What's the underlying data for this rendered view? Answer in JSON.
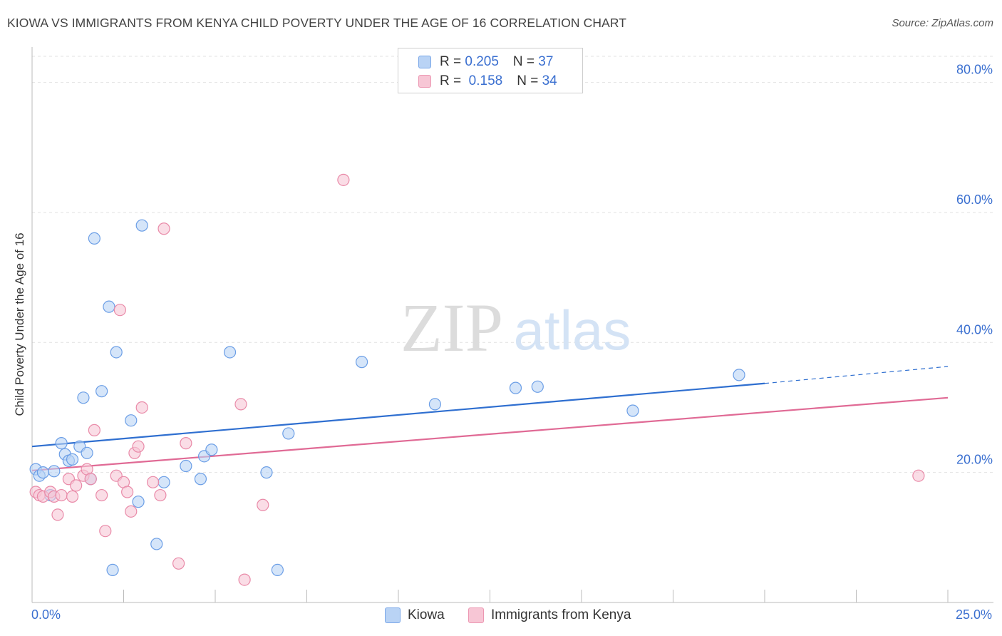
{
  "title": "KIOWA VS IMMIGRANTS FROM KENYA CHILD POVERTY UNDER THE AGE OF 16 CORRELATION CHART",
  "source": "Source: ZipAtlas.com",
  "watermark": {
    "zip": "ZIP",
    "atlas": "atlas"
  },
  "legend": {
    "rows": [
      {
        "r_label": "R = ",
        "r_value": "0.205",
        "n_label": "N = ",
        "n_value": "37",
        "color": "#7aa7e8"
      },
      {
        "r_label": "R = ",
        "r_value": " 0.158",
        "n_label": "N = ",
        "n_value": "34",
        "color": "#ec97b2"
      }
    ]
  },
  "bottom_legend": {
    "series1": "Kiowa",
    "series2": "Immigrants from Kenya"
  },
  "chart_data": {
    "type": "scatter",
    "title": "KIOWA VS IMMIGRANTS FROM KENYA CHILD POVERTY UNDER THE AGE OF 16 CORRELATION CHART",
    "xlabel": "",
    "ylabel": "Child Poverty Under the Age of 16",
    "xlim": [
      0,
      25
    ],
    "ylim": [
      0,
      85
    ],
    "x_tick_labels": [
      "0.0%",
      "25.0%"
    ],
    "y_ticks": [
      20,
      40,
      60,
      80
    ],
    "y_tick_labels": [
      "20.0%",
      "40.0%",
      "60.0%",
      "80.0%"
    ],
    "grid": true,
    "series": [
      {
        "name": "Kiowa",
        "color": "#6b9ee6",
        "fill": "#b9d3f5",
        "points": [
          [
            0.1,
            20.5
          ],
          [
            0.2,
            19.5
          ],
          [
            0.3,
            20.0
          ],
          [
            0.5,
            16.5
          ],
          [
            0.6,
            20.2
          ],
          [
            0.8,
            24.5
          ],
          [
            0.9,
            22.8
          ],
          [
            1.0,
            21.8
          ],
          [
            1.1,
            22.0
          ],
          [
            1.3,
            24.0
          ],
          [
            1.4,
            31.5
          ],
          [
            1.5,
            23.0
          ],
          [
            1.6,
            19.0
          ],
          [
            1.7,
            56.0
          ],
          [
            1.9,
            32.5
          ],
          [
            2.1,
            45.5
          ],
          [
            2.2,
            5.0
          ],
          [
            2.3,
            38.5
          ],
          [
            2.7,
            28.0
          ],
          [
            2.9,
            15.5
          ],
          [
            3.0,
            58.0
          ],
          [
            3.4,
            9.0
          ],
          [
            3.6,
            18.5
          ],
          [
            4.2,
            21.0
          ],
          [
            4.6,
            19.0
          ],
          [
            4.7,
            22.5
          ],
          [
            4.9,
            23.5
          ],
          [
            5.4,
            38.5
          ],
          [
            6.4,
            20.0
          ],
          [
            6.7,
            5.0
          ],
          [
            7.0,
            26.0
          ],
          [
            9.0,
            37.0
          ],
          [
            11.0,
            30.5
          ],
          [
            13.2,
            33.0
          ],
          [
            13.8,
            33.2
          ],
          [
            16.4,
            29.5
          ],
          [
            19.3,
            35.0
          ]
        ],
        "trend": {
          "x0": 0,
          "y0": 24.0,
          "x1": 20.0,
          "y1": 33.7,
          "x_dash_end": 25.0,
          "y_dash_end": 36.3
        }
      },
      {
        "name": "Immigrants from Kenya",
        "color": "#e98aa8",
        "fill": "#f7c6d5",
        "points": [
          [
            0.1,
            17.0
          ],
          [
            0.2,
            16.5
          ],
          [
            0.3,
            16.3
          ],
          [
            0.5,
            17.0
          ],
          [
            0.6,
            16.3
          ],
          [
            0.7,
            13.5
          ],
          [
            0.8,
            16.5
          ],
          [
            1.0,
            19.0
          ],
          [
            1.1,
            16.3
          ],
          [
            1.2,
            18.0
          ],
          [
            1.4,
            19.5
          ],
          [
            1.5,
            20.5
          ],
          [
            1.6,
            19.0
          ],
          [
            1.7,
            26.5
          ],
          [
            1.9,
            16.5
          ],
          [
            2.0,
            11.0
          ],
          [
            2.3,
            19.5
          ],
          [
            2.4,
            45.0
          ],
          [
            2.5,
            18.5
          ],
          [
            2.6,
            17.0
          ],
          [
            2.7,
            14.0
          ],
          [
            2.8,
            23.0
          ],
          [
            2.9,
            24.0
          ],
          [
            3.0,
            30.0
          ],
          [
            3.3,
            18.5
          ],
          [
            3.5,
            16.5
          ],
          [
            3.6,
            57.5
          ],
          [
            4.0,
            6.0
          ],
          [
            4.2,
            24.5
          ],
          [
            5.7,
            30.5
          ],
          [
            5.8,
            3.5
          ],
          [
            6.3,
            15.0
          ],
          [
            8.5,
            65.0
          ],
          [
            24.2,
            19.5
          ]
        ],
        "trend": {
          "x0": 0,
          "y0": 20.3,
          "x1": 25.0,
          "y1": 31.5
        }
      }
    ]
  }
}
